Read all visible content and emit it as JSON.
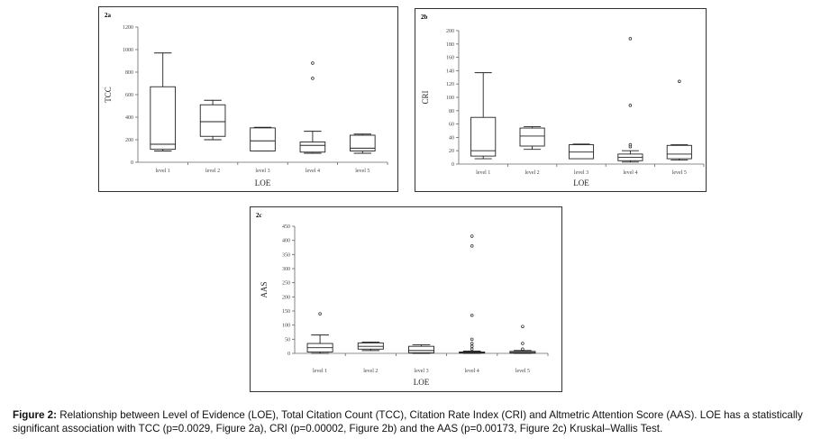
{
  "caption": {
    "label": "Figure 2:",
    "text": " Relationship between Level of Evidence (LOE), Total Citation Count (TCC), Citation Rate Index (CRI) and Altmetric Attention Score (AAS). LOE has a statistically significant association with TCC (p=0.0029, Figure 2a), CRI (p=0.00002, Figure 2b) and the AAS (p=0.00173, Figure 2c) Kruskal–Wallis Test."
  },
  "chart_data": [
    {
      "type": "box",
      "panel_label": "2a",
      "xlabel": "LOE",
      "ylabel": "TCC",
      "categories": [
        "level 1",
        "level 2",
        "level 3",
        "level 4",
        "level 5"
      ],
      "ylim": [
        0,
        1200
      ],
      "yticks": [
        0,
        200,
        400,
        600,
        800,
        1000,
        1200
      ],
      "boxes": [
        {
          "whisker_low": 100,
          "q1": 115,
          "median": 160,
          "q3": 670,
          "whisker_high": 970,
          "outliers": []
        },
        {
          "whisker_low": 200,
          "q1": 230,
          "median": 360,
          "q3": 510,
          "whisker_high": 550,
          "outliers": []
        },
        {
          "whisker_low": 100,
          "q1": 100,
          "median": 190,
          "q3": 305,
          "whisker_high": 310,
          "outliers": []
        },
        {
          "whisker_low": 80,
          "q1": 90,
          "median": 150,
          "q3": 180,
          "whisker_high": 275,
          "outliers": [
            745,
            880
          ]
        },
        {
          "whisker_low": 80,
          "q1": 100,
          "median": 125,
          "q3": 240,
          "whisker_high": 250,
          "outliers": []
        }
      ]
    },
    {
      "type": "box",
      "panel_label": "2b",
      "xlabel": "LOE",
      "ylabel": "CRI",
      "categories": [
        "level 1",
        "level 2",
        "level 3",
        "level 4",
        "level 5"
      ],
      "ylim": [
        0,
        200
      ],
      "yticks": [
        0,
        20,
        40,
        60,
        80,
        100,
        120,
        140,
        160,
        180,
        200
      ],
      "boxes": [
        {
          "whisker_low": 8,
          "q1": 12,
          "median": 20,
          "q3": 70,
          "whisker_high": 137,
          "outliers": []
        },
        {
          "whisker_low": 22,
          "q1": 27,
          "median": 42,
          "q3": 54,
          "whisker_high": 56,
          "outliers": []
        },
        {
          "whisker_low": 8,
          "q1": 8,
          "median": 18,
          "q3": 29,
          "whisker_high": 30,
          "outliers": []
        },
        {
          "whisker_low": 3,
          "q1": 5,
          "median": 10,
          "q3": 15,
          "whisker_high": 20,
          "outliers": [
            26,
            29,
            88,
            188
          ]
        },
        {
          "whisker_low": 6,
          "q1": 8,
          "median": 15,
          "q3": 28,
          "whisker_high": 29,
          "outliers": [
            124
          ]
        }
      ]
    },
    {
      "type": "box",
      "panel_label": "2c",
      "xlabel": "LOE",
      "ylabel": "AAS",
      "categories": [
        "level 1",
        "level 2",
        "level 3",
        "level 4",
        "level 5"
      ],
      "ylim": [
        0,
        450
      ],
      "yticks": [
        0,
        50,
        100,
        150,
        200,
        250,
        300,
        350,
        400,
        450
      ],
      "boxes": [
        {
          "whisker_low": 0,
          "q1": 5,
          "median": 20,
          "q3": 35,
          "whisker_high": 65,
          "outliers": [
            140
          ]
        },
        {
          "whisker_low": 10,
          "q1": 15,
          "median": 25,
          "q3": 37,
          "whisker_high": 40,
          "outliers": []
        },
        {
          "whisker_low": 0,
          "q1": 2,
          "median": 10,
          "q3": 25,
          "whisker_high": 30,
          "outliers": []
        },
        {
          "whisker_low": 0,
          "q1": 1,
          "median": 2,
          "q3": 5,
          "whisker_high": 8,
          "outliers": [
            15,
            25,
            35,
            50,
            135,
            380,
            415
          ]
        },
        {
          "whisker_low": 0,
          "q1": 1,
          "median": 3,
          "q3": 7,
          "whisker_high": 10,
          "outliers": [
            15,
            35,
            95
          ]
        }
      ]
    }
  ]
}
